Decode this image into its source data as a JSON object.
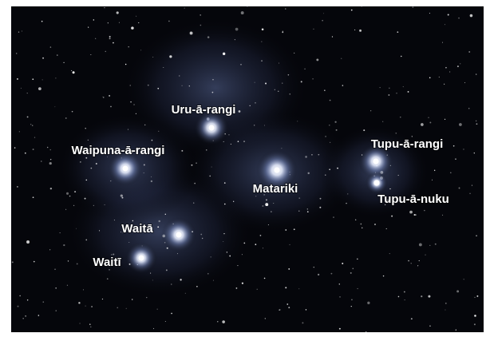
{
  "stars": [
    {
      "name": "Uru-ā-rangi"
    },
    {
      "name": "Waipuna-ā-rangi"
    },
    {
      "name": "Matariki"
    },
    {
      "name": "Tupu-ā-rangi"
    },
    {
      "name": "Tupu-ā-nuku"
    },
    {
      "name": "Waitā"
    },
    {
      "name": "Waitī"
    }
  ]
}
